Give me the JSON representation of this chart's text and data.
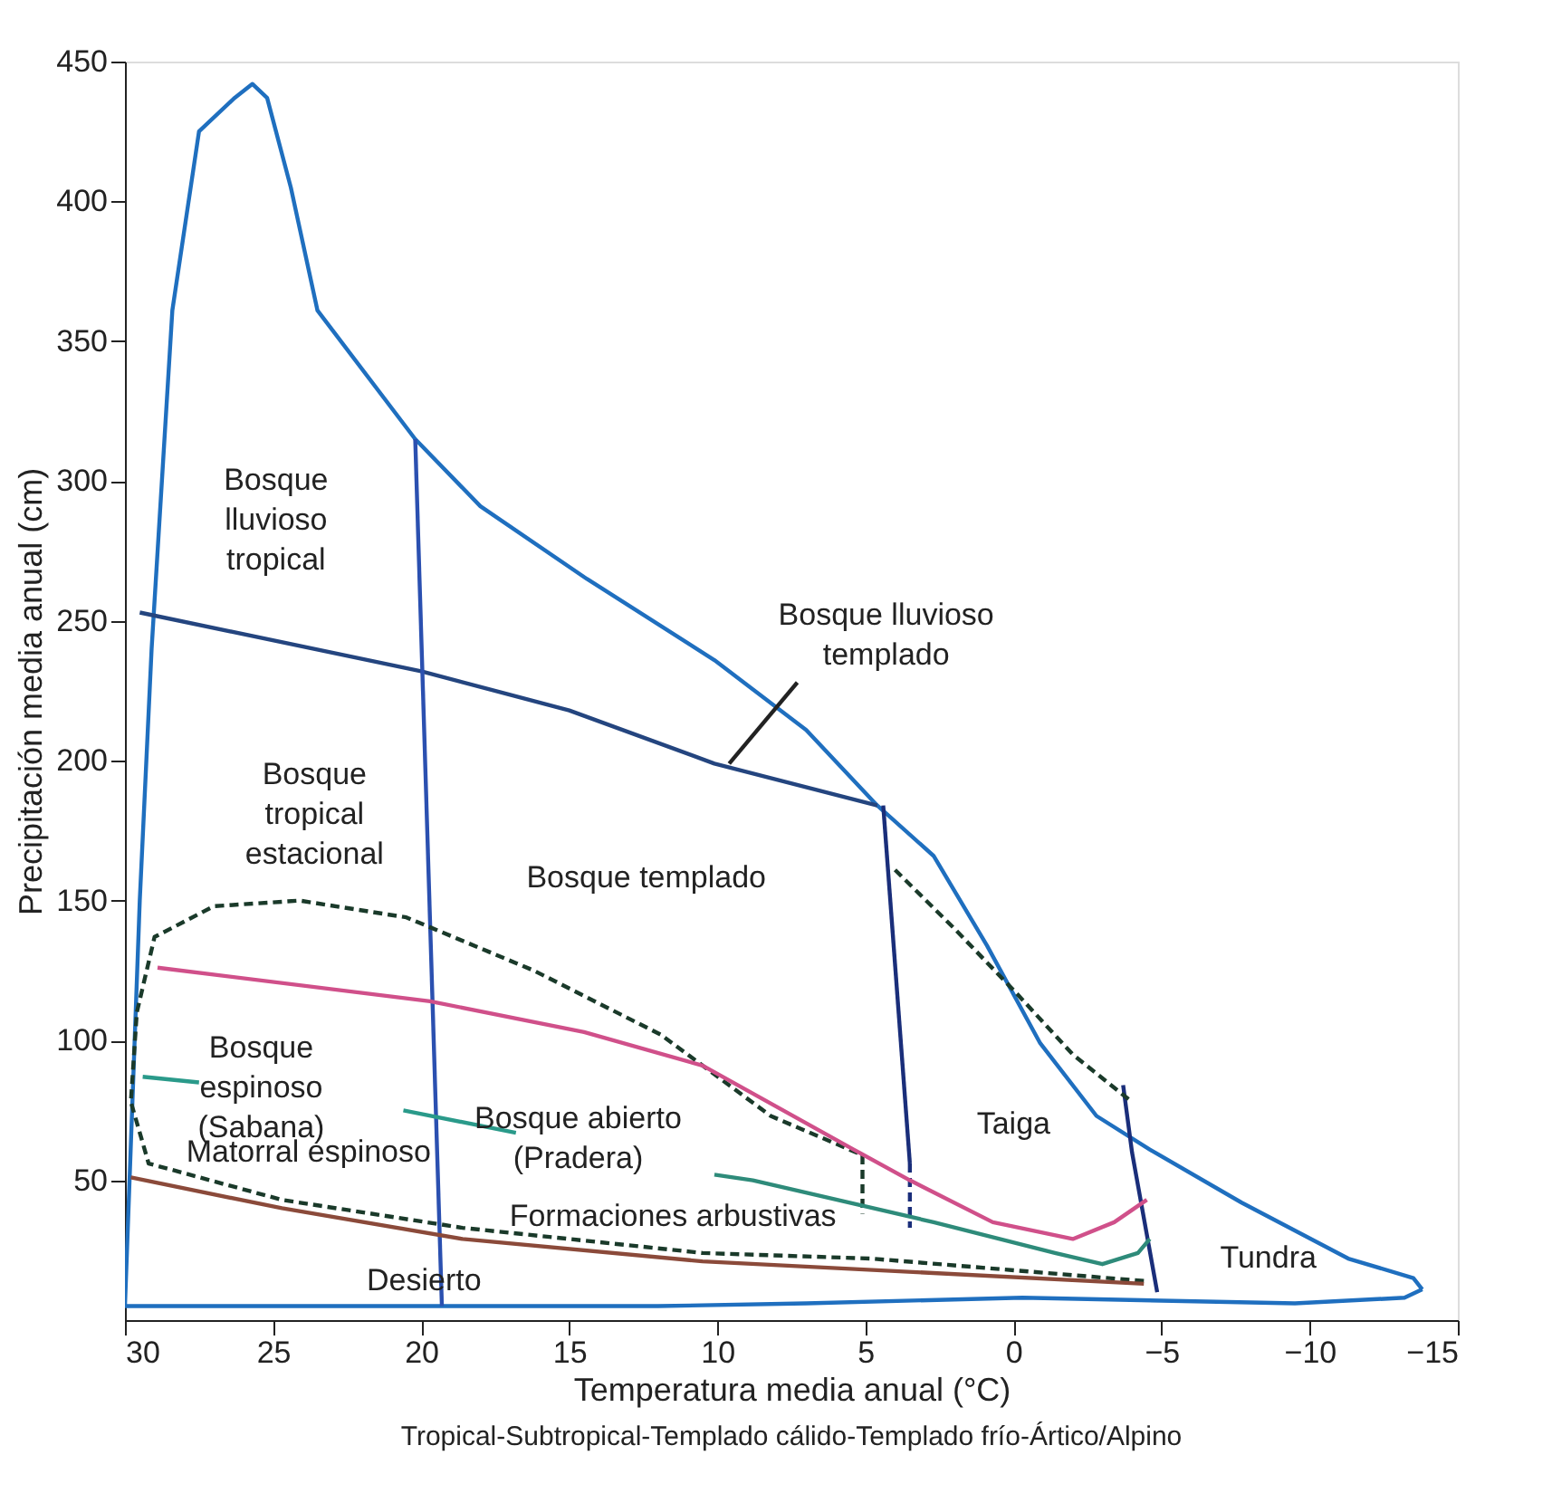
{
  "chart_data": {
    "type": "line",
    "xlabel": "Temperatura media anual (°C)",
    "ylabel": "Precipitación media anual (cm)",
    "xlim": [
      30,
      -15
    ],
    "xticks": [
      30,
      25,
      20,
      15,
      10,
      5,
      0,
      {
        "value": -5,
        "label": "−5"
      },
      {
        "value": -10,
        "label": "−10"
      },
      {
        "value": -15,
        "label": "−15"
      }
    ],
    "ylim": [
      0,
      450
    ],
    "yticks": [
      50,
      100,
      150,
      200,
      250,
      300,
      350,
      400,
      450
    ],
    "grid": false,
    "marker": "none",
    "series": [
      {
        "color": "#1f6fbf",
        "x": [
          30,
          29.5,
          29.1,
          28.4,
          27.5,
          26.3,
          25.7,
          25.2,
          24.4,
          23.5,
          20.2,
          18.0,
          14.4,
          10.1,
          7.0,
          4.6,
          2.7,
          0.9,
          -0.9,
          -2.8,
          -4.6,
          -7.7,
          -11.3,
          -13.5,
          -13.8
        ],
        "values": [
          5,
          150,
          240,
          361,
          425,
          437,
          442,
          437,
          405,
          361,
          315,
          291,
          265,
          236,
          211,
          184,
          166,
          134,
          99,
          73,
          61,
          42,
          22,
          15,
          11
        ]
      },
      {
        "color": "#1f6fbf",
        "x": [
          -13.8,
          -13.2,
          -9.5,
          -0.3,
          7,
          12,
          30
        ],
        "values": [
          11,
          8,
          6,
          8,
          6,
          5,
          5
        ]
      },
      {
        "color": "#24457f",
        "x": [
          29.5,
          20,
          15,
          10.1,
          4.6
        ],
        "values": [
          253,
          232,
          218,
          199,
          184
        ]
      },
      {
        "color": "#2b50b0",
        "x": [
          20.2,
          19.3
        ],
        "values": [
          315,
          5
        ]
      },
      {
        "color": "#1a2e7a",
        "x": [
          4.4,
          3.5
        ],
        "values": [
          184,
          56
        ]
      },
      {
        "color": "#1a2e7a",
        "x": [
          3.5,
          3.5
        ],
        "values": [
          56,
          33
        ],
        "line_style": "dashed"
      },
      {
        "color": "#1a2e7a",
        "x": [
          -3.7,
          -4.0,
          -4.85
        ],
        "values": [
          84,
          60,
          10
        ]
      },
      {
        "color": "#1a3a2a",
        "line_style": "dashed",
        "x": [
          4.0,
          2.0,
          0.0,
          -2.0,
          -4.0
        ],
        "values": [
          161,
          140,
          118,
          95,
          78
        ]
      },
      {
        "color": "#1a3a2a",
        "line_style": "dashed",
        "x": [
          -4.4,
          4.8,
          10.5,
          18.6,
          24.7,
          29.2,
          29.8,
          29.6,
          29,
          27,
          24.1,
          20.5,
          16.2,
          11.9,
          8.2,
          5.1,
          5.1
        ],
        "values": [
          14,
          22,
          24,
          33,
          43,
          56,
          78,
          110,
          137,
          148,
          150,
          144,
          125,
          102,
          73,
          59,
          38
        ]
      },
      {
        "color": "#d0508a",
        "x": [
          28.9,
          19.7,
          14.5,
          10.5,
          5.4,
          3.5,
          0.7,
          -2,
          -3.4,
          -4.5
        ],
        "values": [
          126,
          114,
          103,
          91,
          61,
          50,
          35,
          29,
          35,
          43
        ]
      },
      {
        "color": "#2e8b7a",
        "x": [
          10.1,
          8.8,
          2.7,
          -1.4,
          -3,
          -4.2,
          -4.6
        ],
        "values": [
          52,
          50,
          35,
          24,
          20,
          24,
          29
        ]
      },
      {
        "color": "#8b4a3a",
        "x": [
          29.8,
          24.7,
          18.6,
          10.5,
          -4.4
        ],
        "values": [
          51,
          40,
          29,
          21,
          13
        ]
      },
      {
        "color": "#2a9a8a",
        "x": [
          29.4,
          27.5
        ],
        "values": [
          87,
          85
        ]
      },
      {
        "color": "#2a9a8a",
        "x": [
          20.6,
          16.8
        ],
        "values": [
          75,
          67
        ]
      },
      {
        "color": "#222222",
        "x": [
          9.6,
          7.3
        ],
        "values": [
          199,
          228
        ]
      }
    ],
    "annotations": [
      "Bosque\nlluvioso\ntropical",
      "Bosque\ntropical\nestacional",
      "Bosque lluvioso\ntemplado",
      "Bosque templado",
      "Bosque\nespinoso\n(Sabana)",
      "Bosque abierto\n(Pradera)",
      "Matorral espinoso",
      "Formaciones arbustivas",
      "Desierto",
      "Taiga",
      "Tundra",
      "Tropical-Subtropical-Templado cálido-Templado frío-Ártico/Alpino"
    ]
  }
}
